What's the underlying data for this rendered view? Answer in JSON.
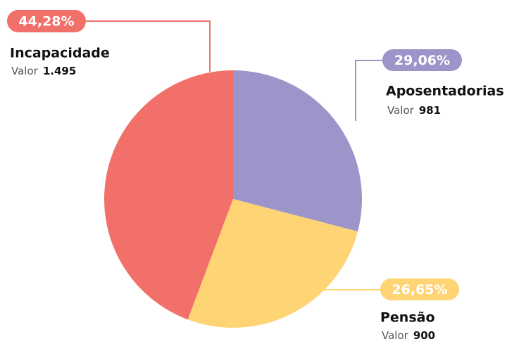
{
  "chart_data": {
    "type": "pie",
    "categories": [
      "Aposentadorias",
      "Pensão",
      "Incapacidade"
    ],
    "values": [
      981,
      900,
      1495
    ],
    "value_labels": [
      "981",
      "900",
      "1.495"
    ],
    "percent_labels": [
      "29,06%",
      "26,65%",
      "44,28%"
    ],
    "value_prefix": "Valor",
    "colors": [
      "#9b95c9",
      "#ffd474",
      "#f2706a"
    ]
  }
}
